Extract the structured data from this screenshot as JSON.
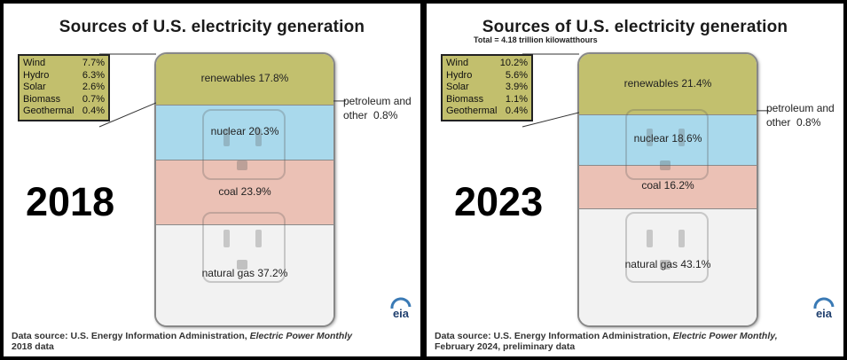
{
  "panels": [
    {
      "year": "2018",
      "title": "Sources of U.S. electricity generation",
      "subtitle": "",
      "sources": [
        {
          "name": "renewables",
          "label": "renewables",
          "value_text": "17.8%",
          "value": 17.8,
          "color": "#c2c06e"
        },
        {
          "name": "nuclear",
          "label": "nuclear",
          "value_text": "20.3%",
          "value": 20.3,
          "color": "#a9d9ec"
        },
        {
          "name": "coal",
          "label": "coal",
          "value_text": "23.9%",
          "value": 23.9,
          "color": "#ebc1b5"
        },
        {
          "name": "natural_gas",
          "label": "natural gas",
          "value_text": "37.2%",
          "value": 37.2,
          "color": "#f2f2f2"
        }
      ],
      "petroleum": {
        "line1": "petroleum and",
        "line2": "other",
        "value_text": "0.8%",
        "value": 0.8
      },
      "renewables_breakdown": [
        {
          "label": "Wind",
          "value_text": "7.7%"
        },
        {
          "label": "Hydro",
          "value_text": "6.3%"
        },
        {
          "label": "Solar",
          "value_text": "2.6%"
        },
        {
          "label": "Biomass",
          "value_text": "0.7%"
        },
        {
          "label": "Geothermal",
          "value_text": "0.4%"
        }
      ],
      "source_prefix": "Data source: U.S. Energy Information Administration,",
      "source_publication": "Electric Power Monthly",
      "source_line2": "2018 data",
      "logo_text": "eia"
    },
    {
      "year": "2023",
      "title": "Sources of U.S. electricity generation",
      "subtitle": "Total = 4.18 trillion kilowatthours",
      "sources": [
        {
          "name": "renewables",
          "label": "renewables",
          "value_text": "21.4%",
          "value": 21.4,
          "color": "#c2c06e"
        },
        {
          "name": "nuclear",
          "label": "nuclear",
          "value_text": "18.6%",
          "value": 18.6,
          "color": "#a9d9ec"
        },
        {
          "name": "coal",
          "label": "coal",
          "value_text": "16.2%",
          "value": 16.2,
          "color": "#ebc1b5"
        },
        {
          "name": "natural_gas",
          "label": "natural gas",
          "value_text": "43.1%",
          "value": 43.1,
          "color": "#f2f2f2"
        }
      ],
      "petroleum": {
        "line1": "petroleum and",
        "line2": "other",
        "value_text": "0.8%",
        "value": 0.8
      },
      "renewables_breakdown": [
        {
          "label": "Wind",
          "value_text": "10.2%"
        },
        {
          "label": "Hydro",
          "value_text": "5.6%"
        },
        {
          "label": "Solar",
          "value_text": "3.9%"
        },
        {
          "label": "Biomass",
          "value_text": "1.1%"
        },
        {
          "label": "Geothermal",
          "value_text": "0.4%"
        }
      ],
      "source_prefix": "Data source: U.S. Energy Information Administration,",
      "source_publication": "Electric Power Monthly,",
      "source_line2": "February 2024, preliminary data",
      "logo_text": "eia"
    }
  ],
  "chart_data": [
    {
      "type": "bar",
      "title": "Sources of U.S. electricity generation",
      "categories": [
        "renewables",
        "petroleum and other",
        "nuclear",
        "coal",
        "natural gas"
      ],
      "values": [
        17.8,
        0.8,
        20.3,
        23.9,
        37.2
      ],
      "breakdown": {
        "categories": [
          "Wind",
          "Hydro",
          "Solar",
          "Biomass",
          "Geothermal"
        ],
        "values": [
          7.7,
          6.3,
          2.6,
          0.7,
          0.4
        ]
      },
      "annotation": "2018"
    },
    {
      "type": "bar",
      "title": "Sources of U.S. electricity generation",
      "subtitle": "Total = 4.18 trillion kilowatthours",
      "categories": [
        "renewables",
        "petroleum and other",
        "nuclear",
        "coal",
        "natural gas"
      ],
      "values": [
        21.4,
        0.8,
        18.6,
        16.2,
        43.1
      ],
      "breakdown": {
        "categories": [
          "Wind",
          "Hydro",
          "Solar",
          "Biomass",
          "Geothermal"
        ],
        "values": [
          10.2,
          5.6,
          3.9,
          1.1,
          0.4
        ]
      },
      "annotation": "2023"
    }
  ]
}
